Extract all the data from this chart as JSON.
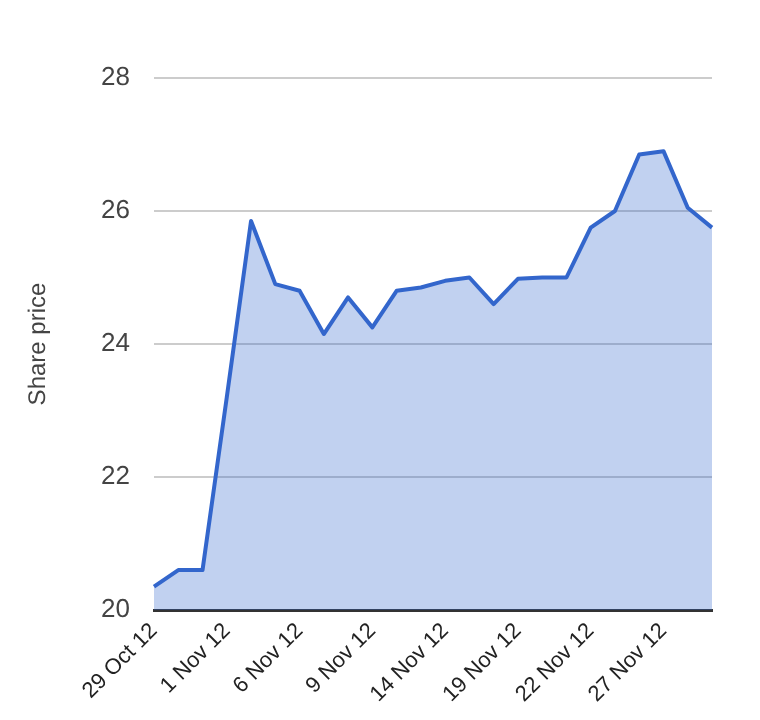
{
  "chart_data": {
    "type": "area",
    "ylabel": "Share price",
    "categories": [
      "29 Oct 12",
      null,
      null,
      "1 Nov 12",
      null,
      null,
      "6 Nov 12",
      null,
      null,
      "9 Nov 12",
      null,
      null,
      "14 Nov 12",
      null,
      null,
      "19 Nov 12",
      null,
      null,
      "22 Nov 12",
      null,
      null,
      "27 Nov 12",
      null,
      null
    ],
    "series": [
      {
        "color": "#3366cc",
        "values": [
          20.35,
          20.6,
          20.6,
          23.2,
          25.85,
          24.9,
          24.8,
          24.15,
          24.7,
          24.25,
          24.8,
          24.85,
          24.95,
          25.0,
          24.6,
          24.98,
          25.0,
          25.0,
          25.75,
          26.0,
          26.85,
          26.9,
          26.05,
          25.75
        ]
      }
    ],
    "ylim": [
      20,
      28
    ],
    "yticks": [
      20,
      22,
      24,
      26,
      28
    ],
    "grid": "y",
    "marker": "none"
  }
}
